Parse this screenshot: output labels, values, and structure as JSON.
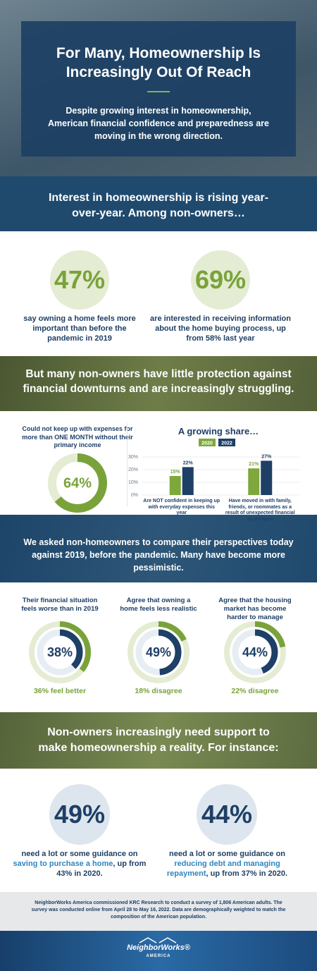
{
  "hero": {
    "title": "For Many, Homeownership Is Increasingly Out Of Reach",
    "subtitle": "Despite growing interest in homeownership, American financial confidence and preparedness are moving in the wrong direction."
  },
  "section1": {
    "heading": "Interest in homeownership is rising year-over-year. Among non-owners…",
    "stats": [
      {
        "stat": "47%",
        "text": "say owning a home feels more important than before the pandemic in 2019"
      },
      {
        "stat": "69%",
        "text": "are interested in receiving information about the home buying process, up from 58% last year"
      }
    ]
  },
  "section2": {
    "heading": "But many non-owners have little protection against financial downturns and are increasingly struggling.",
    "donut": {
      "text": "Could not keep up with expenses for more than ONE MONTH without their primary income",
      "value": 64,
      "label": "64%"
    },
    "chart_data": {
      "type": "bar",
      "title": "A growing share…",
      "categories": [
        "Are NOT confident in keeping up with everyday expenses this year",
        "Have moved in with family, friends, or roommates as a result of unexpected financial challenges"
      ],
      "series": [
        {
          "name": "2020",
          "color": "#7ea83b",
          "values": [
            15,
            21
          ],
          "value_labels": [
            "15%",
            "21%"
          ]
        },
        {
          "name": "2022",
          "color": "#1e3f66",
          "values": [
            22,
            27
          ],
          "value_labels": [
            "22%",
            "27%"
          ]
        }
      ],
      "ylim": [
        0,
        30
      ],
      "yticks": [
        {
          "value": 0,
          "label": "0%"
        },
        {
          "value": 10,
          "label": "10%"
        },
        {
          "value": 20,
          "label": "20%"
        },
        {
          "value": 30,
          "label": "30%"
        }
      ],
      "grid": true
    }
  },
  "section3": {
    "heading": "We asked non-homeowners to compare their perspectives today against 2019, before the pandemic. Many have become more pessimistic.",
    "items": [
      {
        "text": "Their financial situation feels worse than in 2019",
        "value": 38,
        "label": "38%",
        "compare": {
          "value": 36,
          "label": "36%",
          "text": "feel better"
        }
      },
      {
        "text": "Agree that owning a home feels less realistic",
        "value": 49,
        "label": "49%",
        "compare": {
          "value": 18,
          "label": "18%",
          "text": "disagree"
        }
      },
      {
        "text": "Agree that the housing market has become harder to manage",
        "value": 44,
        "label": "44%",
        "compare": {
          "value": 22,
          "label": "22%",
          "text": "disagree"
        }
      }
    ]
  },
  "section4": {
    "heading": "Non-owners increasingly need support to make homeownership a reality. For instance:",
    "stats": [
      {
        "stat": "49%",
        "parts": [
          "need a lot or some guidance on ",
          "saving to purchase a home",
          ", up from 43% in 2020."
        ]
      },
      {
        "stat": "44%",
        "parts": [
          "need a lot or some guidance on ",
          "reducing debt and managing repayment",
          ", up from 37% in 2020."
        ]
      }
    ]
  },
  "footnote": "NeighborWorks America commissioned KRC Research to conduct a survey of 1,806 American adults. The survey was conducted online from April 28 to May 16, 2022. Data are demographically weighted to match the composition of the American population.",
  "logo": {
    "name": "NeighborWorks®",
    "sub": "AMERICA"
  }
}
